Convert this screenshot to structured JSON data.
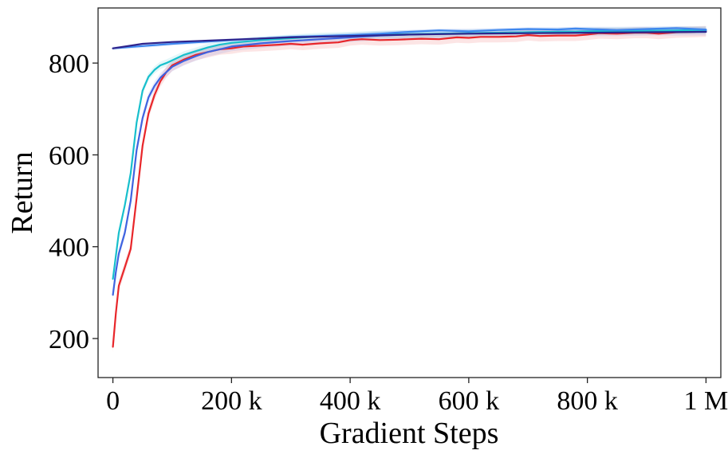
{
  "chart_data": {
    "type": "line",
    "title": "",
    "xlabel": "Gradient Steps",
    "ylabel": "Return",
    "xlim": [
      -25000,
      1025000
    ],
    "ylim": [
      115,
      920
    ],
    "x_ticks": [
      0,
      200000,
      400000,
      600000,
      800000,
      1000000
    ],
    "x_tick_labels": [
      "0",
      "200 k",
      "400 k",
      "600 k",
      "800 k",
      "1 M"
    ],
    "y_ticks": [
      200,
      400,
      600,
      800
    ],
    "y_tick_labels": [
      "200",
      "400",
      "600",
      "800"
    ],
    "grid": false,
    "legend": "none",
    "series": [
      {
        "color": "#e8262a",
        "band": 12,
        "x": [
          0,
          5000,
          10000,
          20000,
          30000,
          40000,
          50000,
          60000,
          70000,
          80000,
          90000,
          100000,
          120000,
          140000,
          160000,
          180000,
          200000,
          220000,
          250000,
          280000,
          300000,
          320000,
          350000,
          380000,
          400000,
          420000,
          450000,
          480000,
          500000,
          520000,
          550000,
          580000,
          600000,
          620000,
          650000,
          680000,
          700000,
          720000,
          750000,
          780000,
          800000,
          820000,
          850000,
          880000,
          900000,
          920000,
          950000,
          980000,
          1000000
        ],
        "y": [
          182,
          255,
          315,
          355,
          395,
          505,
          620,
          690,
          730,
          760,
          780,
          795,
          808,
          818,
          824,
          830,
          832,
          836,
          838,
          840,
          842,
          840,
          843,
          845,
          850,
          852,
          850,
          851,
          852,
          853,
          852,
          856,
          855,
          857,
          857,
          858,
          861,
          859,
          860,
          860,
          862,
          865,
          864,
          866,
          866,
          864,
          867,
          868,
          869
        ]
      },
      {
        "color": "#3f63e0",
        "band": 10,
        "x": [
          0,
          5000,
          10000,
          20000,
          30000,
          40000,
          50000,
          60000,
          70000,
          80000,
          90000,
          100000,
          120000,
          140000,
          160000,
          180000,
          200000,
          250000,
          300000,
          350000,
          400000,
          450000,
          500000,
          550000,
          600000,
          650000,
          700000,
          750000,
          800000,
          850000,
          900000,
          950000,
          1000000
        ],
        "y": [
          295,
          345,
          385,
          430,
          500,
          610,
          680,
          725,
          750,
          768,
          780,
          792,
          805,
          815,
          824,
          830,
          836,
          843,
          848,
          852,
          856,
          860,
          862,
          864,
          865,
          866,
          867,
          868,
          869,
          869,
          870,
          870,
          870
        ]
      },
      {
        "color": "#17bfcc",
        "band": 8,
        "x": [
          0,
          5000,
          10000,
          20000,
          30000,
          40000,
          50000,
          60000,
          70000,
          80000,
          90000,
          100000,
          120000,
          140000,
          160000,
          180000,
          200000,
          250000,
          300000,
          350000,
          400000,
          450000,
          500000,
          550000,
          600000,
          650000,
          700000,
          750000,
          800000,
          850000,
          900000,
          950000,
          1000000
        ],
        "y": [
          330,
          380,
          430,
          490,
          560,
          670,
          740,
          770,
          785,
          795,
          800,
          806,
          818,
          826,
          834,
          840,
          844,
          850,
          854,
          858,
          860,
          862,
          863,
          864,
          865,
          866,
          867,
          868,
          869,
          870,
          870,
          871,
          872
        ]
      },
      {
        "color": "#3d86ee",
        "band": 4,
        "x": [
          0,
          100000,
          200000,
          300000,
          400000,
          450000,
          500000,
          550000,
          600000,
          650000,
          700000,
          750000,
          780000,
          800000,
          850000,
          900000,
          950000,
          1000000
        ],
        "y": [
          832,
          842,
          850,
          857,
          861,
          864,
          868,
          871,
          869,
          872,
          874,
          873,
          875,
          874,
          872,
          874,
          876,
          873
        ]
      },
      {
        "color": "#2e238c",
        "band": 0,
        "x": [
          0,
          50000,
          100000,
          200000,
          300000,
          400000,
          500000,
          600000,
          700000,
          800000,
          900000,
          1000000
        ],
        "y": [
          832,
          842,
          846,
          851,
          856,
          859,
          862,
          864,
          865,
          866,
          867,
          868
        ]
      }
    ]
  }
}
